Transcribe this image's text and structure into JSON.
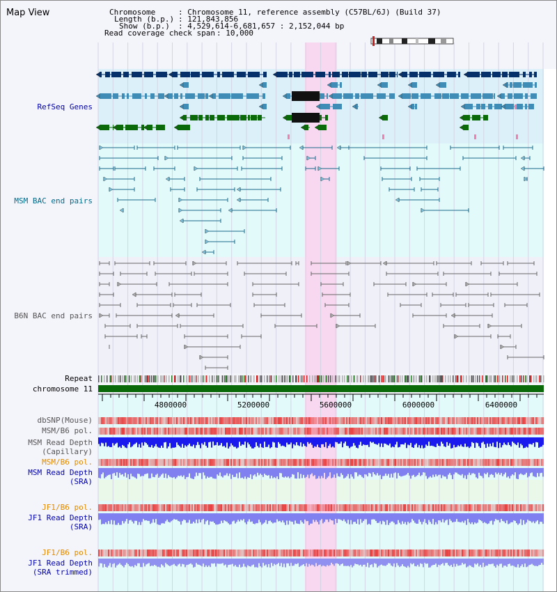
{
  "view_title": "Map View",
  "info": {
    "chromosome_key": "Chromosome",
    "chromosome_val": ": Chromosome 11, reference assembly (C57BL/6J) (Build 37)",
    "length_key": "Length (b.p.)",
    "length_val": ": 121,843,856",
    "show_key": "Show (b.p.)",
    "show_val": ": 4,529,614-6,681,657 : 2,152,044 bp",
    "span_key": "Read coverage check span",
    "span_val": ": 10,000"
  },
  "tracks": {
    "refseq": "RefSeq Genes",
    "msm_bac": "MSM BAC end pairs",
    "b6n_bac": "B6N BAC end pairs",
    "repeat": "Repeat",
    "chromosome": "chromosome 11",
    "dbsnp": "dbSNP(Mouse)",
    "msm_pol": "MSM/B6 pol.",
    "msm_depth_cap_1": "MSM Read Depth",
    "msm_depth_cap_2": "(Capillary)",
    "msm_pol_2": "MSM/B6 pol.",
    "msm_depth_sra_1": "MSM Read Depth",
    "msm_depth_sra_2": "(SRA)",
    "jf1_pol": "JF1/B6 pol.",
    "jf1_depth_1": "JF1 Read Depth",
    "jf1_depth_2": "(SRA)",
    "jf1_pol_2": "JF1/B6 pol.",
    "jf1_trim_1": "JF1 Read Depth",
    "jf1_trim_2": "(SRA trimmed)"
  },
  "axis": {
    "ticks": [
      "4800000",
      "5200000",
      "5600000",
      "6000000",
      "6400000"
    ]
  },
  "colors": {
    "refseq_bg": "#dcf0fa",
    "highlight": "#f8d8f0",
    "gene_dark": "#06306a",
    "gene_mid": "#3f8cb6",
    "gene_green": "#0a6a0a",
    "msm_line": "#1a6a8a",
    "b6n_line": "#666666",
    "depth_blue": "#1a1aee",
    "depth_light": "#8080f0",
    "pol_red": "#e84040",
    "label_blue": "#0000aa",
    "label_teal": "#006a8a",
    "label_orange": "#e08a00"
  }
}
